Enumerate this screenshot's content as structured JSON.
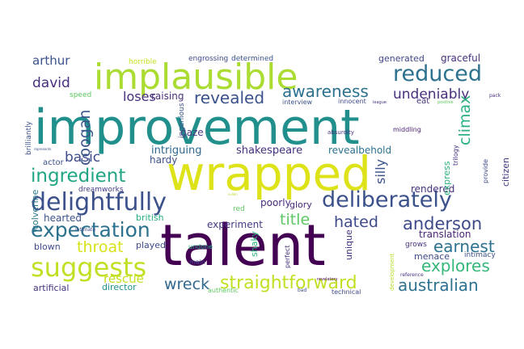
{
  "palette": {
    "dark_purple": "#440154",
    "purple": "#472f7d",
    "indigo": "#3b518b",
    "blue": "#2c718e",
    "teal": "#21908d",
    "green": "#27ad81",
    "light_green": "#5cc863",
    "lime": "#aadc32",
    "yellow": "#dde318"
  },
  "words": [
    {
      "text": "improvement",
      "color": "#21908d"
    },
    {
      "text": "talent",
      "color": "#440154"
    },
    {
      "text": "wrapped",
      "color": "#dde318"
    },
    {
      "text": "implausible",
      "color": "#aadc32"
    },
    {
      "text": "suggests",
      "color": "#c2df23"
    },
    {
      "text": "delightfully",
      "color": "#3b518b"
    },
    {
      "text": "deliberately",
      "color": "#3b518b"
    },
    {
      "text": "expectation",
      "color": "#2c718e"
    },
    {
      "text": "reduced",
      "color": "#2c718e"
    },
    {
      "text": "ingredient",
      "color": "#21a685"
    },
    {
      "text": "straightforward",
      "color": "#c2df23"
    },
    {
      "text": "anderson",
      "color": "#3e4a89"
    },
    {
      "text": "australian",
      "color": "#2c718e"
    },
    {
      "text": "explores",
      "color": "#35b779"
    },
    {
      "text": "revealed",
      "color": "#3b518b"
    },
    {
      "text": "awareness",
      "color": "#2c718e"
    },
    {
      "text": "earnest",
      "color": "#2c728e"
    },
    {
      "text": "hated",
      "color": "#3e4a89"
    },
    {
      "text": "title",
      "color": "#5cc863"
    },
    {
      "text": "wreck",
      "color": "#31688e"
    },
    {
      "text": "throat",
      "color": "#d8e219"
    },
    {
      "text": "undeniably",
      "color": "#472f7d"
    },
    {
      "text": "basic",
      "color": "#3e4a89"
    },
    {
      "text": "loses",
      "color": "#472f7d"
    },
    {
      "text": "david",
      "color": "#472f7d"
    },
    {
      "text": "coogan",
      "color": "#39568c"
    },
    {
      "text": "climax",
      "color": "#29af7f"
    },
    {
      "text": "rescue",
      "color": "#c8e020"
    },
    {
      "text": "arthur",
      "color": "#3b528b"
    },
    {
      "text": "shakespeare",
      "color": "#46307e"
    },
    {
      "text": "intriguing",
      "color": "#31688e"
    },
    {
      "text": "silly",
      "color": "#3b528b"
    },
    {
      "text": "revealbehold",
      "color": "#2c728e"
    },
    {
      "text": "translation",
      "color": "#482576"
    },
    {
      "text": "experiment",
      "color": "#443a83"
    },
    {
      "text": "poorly",
      "color": "#472d7b"
    },
    {
      "text": "raising",
      "color": "#472f7d"
    },
    {
      "text": "gaze",
      "color": "#453781"
    },
    {
      "text": "hardy",
      "color": "#3b528b"
    },
    {
      "text": "blown",
      "color": "#3e4a89"
    },
    {
      "text": "hearted",
      "color": "#3b528b"
    },
    {
      "text": "generated",
      "color": "#414487"
    },
    {
      "text": "graceful",
      "color": "#46307e"
    },
    {
      "text": "rendered",
      "color": "#46307e"
    },
    {
      "text": "citizen",
      "color": "#453882"
    },
    {
      "text": "british",
      "color": "#29af7f"
    },
    {
      "text": "played",
      "color": "#3e4a89"
    },
    {
      "text": "director",
      "color": "#21918c"
    },
    {
      "text": "artificial",
      "color": "#46337f"
    },
    {
      "text": "menace",
      "color": "#3e4a89"
    },
    {
      "text": "grows",
      "color": "#46327e"
    },
    {
      "text": "intimacy",
      "color": "#3b528b"
    },
    {
      "text": "express",
      "color": "#2db27d"
    },
    {
      "text": "glory",
      "color": "#482878"
    },
    {
      "text": "actor",
      "color": "#3b528b"
    },
    {
      "text": "dreamworks",
      "color": "#433e85"
    },
    {
      "text": "wolverine",
      "color": "#2a788e"
    },
    {
      "text": "eat",
      "color": "#46337f"
    },
    {
      "text": "horrible",
      "color": "#c8e020"
    },
    {
      "text": "engrossing",
      "color": "#3e4989"
    },
    {
      "text": "determined",
      "color": "#3b528b"
    },
    {
      "text": "brilliantly",
      "color": "#3b528b"
    },
    {
      "text": "speed",
      "color": "#5ec962"
    },
    {
      "text": "ingenious",
      "color": "#3b528b"
    },
    {
      "text": "interview",
      "color": "#3b528b"
    },
    {
      "text": "innocent",
      "color": "#3e4a89"
    },
    {
      "text": "absurdity",
      "color": "#46327e"
    },
    {
      "text": "middling",
      "color": "#481f70"
    },
    {
      "text": "trilogy",
      "color": "#46307e"
    },
    {
      "text": "provide",
      "color": "#3e4a89"
    },
    {
      "text": "shaky",
      "color": "#2db27d"
    },
    {
      "text": "perfect",
      "color": "#46327e"
    },
    {
      "text": "unique",
      "color": "#46337f"
    },
    {
      "text": "development",
      "color": "#b5de2b"
    },
    {
      "text": "undone",
      "color": "#26ad81"
    },
    {
      "text": "main",
      "color": "#3e4a89"
    },
    {
      "text": "red",
      "color": "#5ec962"
    },
    {
      "text": "authentic",
      "color": "#5ec962"
    },
    {
      "text": "bad",
      "color": "#3e4a89"
    },
    {
      "text": "technical",
      "color": "#3e4a89"
    },
    {
      "text": "reference",
      "color": "#46307e"
    },
    {
      "text": "intimate",
      "color": "#3e4a89"
    },
    {
      "text": "revelatory",
      "color": "#440154"
    },
    {
      "text": "positive",
      "color": "#5ec962"
    },
    {
      "text": "league",
      "color": "#46327e"
    },
    {
      "text": "pack",
      "color": "#46307e"
    },
    {
      "text": "represents",
      "color": "#3e4a89"
    },
    {
      "text": "sullen",
      "color": "#b8de29"
    }
  ]
}
